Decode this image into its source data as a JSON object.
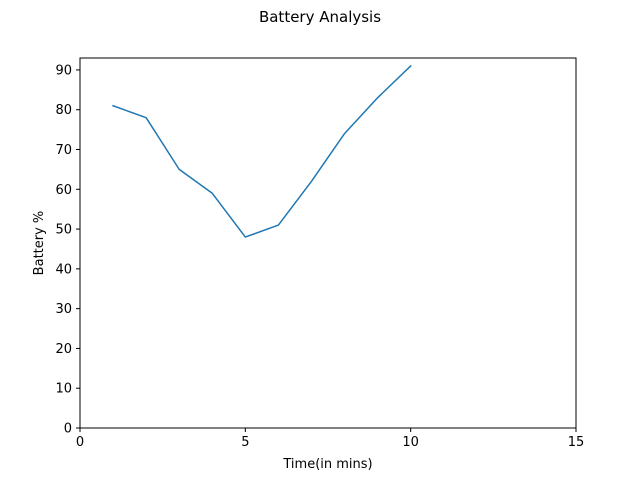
{
  "chart_data": {
    "type": "line",
    "title": "Battery Analysis",
    "xlabel": "Time(in mins)",
    "ylabel": "Battery %",
    "xlim": [
      0,
      15
    ],
    "ylim": [
      0,
      93
    ],
    "xticks": [
      0,
      5,
      10,
      15
    ],
    "yticks": [
      0,
      10,
      20,
      30,
      40,
      50,
      60,
      70,
      80,
      90
    ],
    "grid": false,
    "series": [
      {
        "x": [
          1,
          2,
          3,
          4,
          5,
          6,
          7,
          8,
          9,
          10
        ],
        "values": [
          81,
          78,
          65,
          59,
          48,
          51,
          62,
          74,
          83,
          91
        ],
        "color": "#1f77b4"
      }
    ]
  }
}
